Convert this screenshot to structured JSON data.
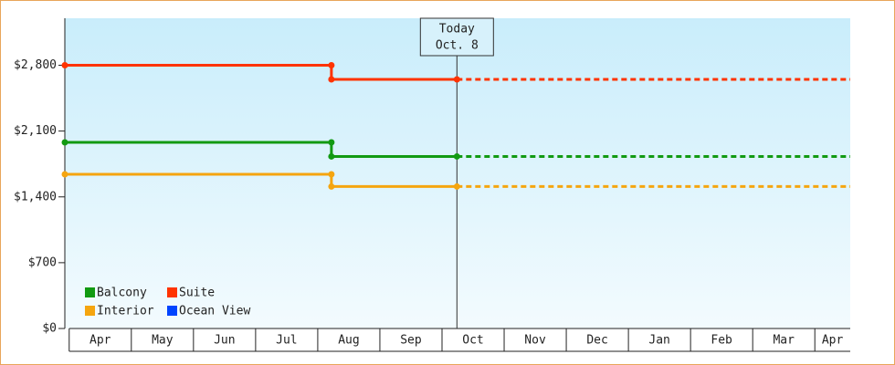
{
  "chart_data": {
    "type": "step-line",
    "x": [
      -0.07,
      4.22,
      4.22,
      6.24,
      12.57
    ],
    "xlim": [
      -0.07,
      12.57
    ],
    "xticks": [
      {
        "value": 0,
        "label": "Apr"
      },
      {
        "value": 1,
        "label": "May"
      },
      {
        "value": 2,
        "label": "Jun"
      },
      {
        "value": 3,
        "label": "Jul"
      },
      {
        "value": 4,
        "label": "Aug"
      },
      {
        "value": 5,
        "label": "Sep"
      },
      {
        "value": 6,
        "label": "Oct"
      },
      {
        "value": 7,
        "label": "Nov"
      },
      {
        "value": 8,
        "label": "Dec"
      },
      {
        "value": 9,
        "label": "Jan"
      },
      {
        "value": 10,
        "label": "Feb"
      },
      {
        "value": 11,
        "label": "Mar"
      },
      {
        "value": 12,
        "label": "Apr"
      }
    ],
    "ylim": [
      0,
      3300
    ],
    "yticks": [
      {
        "value": 0,
        "label": "$0"
      },
      {
        "value": 700,
        "label": "$700"
      },
      {
        "value": 1400,
        "label": "$1,400"
      },
      {
        "value": 2100,
        "label": "$2,100"
      },
      {
        "value": 2800,
        "label": "$2,800"
      }
    ],
    "today": {
      "x": 6.24,
      "label": [
        "Today",
        "Oct. 8"
      ]
    },
    "legend": "lower left",
    "series": [
      {
        "name": "Balcony",
        "color": "#129a12",
        "values": [
          1980,
          1980,
          1830,
          1830,
          1830
        ]
      },
      {
        "name": "Suite",
        "color": "#ff3300",
        "values": [
          2800,
          2800,
          2650,
          2650,
          2650
        ]
      },
      {
        "name": "Interior",
        "color": "#f5a50f",
        "values": [
          1640,
          1640,
          1510,
          1510,
          1510
        ]
      },
      {
        "name": "Ocean View",
        "color": "#0044ff",
        "values": [
          null,
          null,
          null,
          null,
          null
        ]
      }
    ]
  }
}
